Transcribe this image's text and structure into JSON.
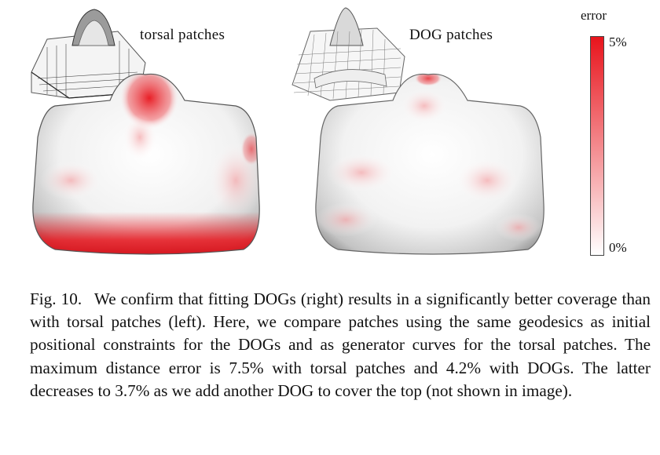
{
  "figure": {
    "left_label": "torsal patches",
    "right_label": "DOG patches",
    "colorbar": {
      "title": "error",
      "max_label": "5%",
      "min_label": "0%",
      "color_high": "#e8141c",
      "color_low": "#ffffff"
    }
  },
  "caption": {
    "number": "Fig. 10.",
    "text": "We confirm that fitting DOGs (right) results in a significantly better coverage than with torsal patches (left). Here, we compare patches using the same geodesics as initial positional constraints for the DOGs and as generator curves for the torsal patches. The maximum distance error is 7.5% with torsal patches and 4.2% with DOGs. The latter decreases to 3.7% as we add another DOG to cover the top (not shown in image)."
  }
}
